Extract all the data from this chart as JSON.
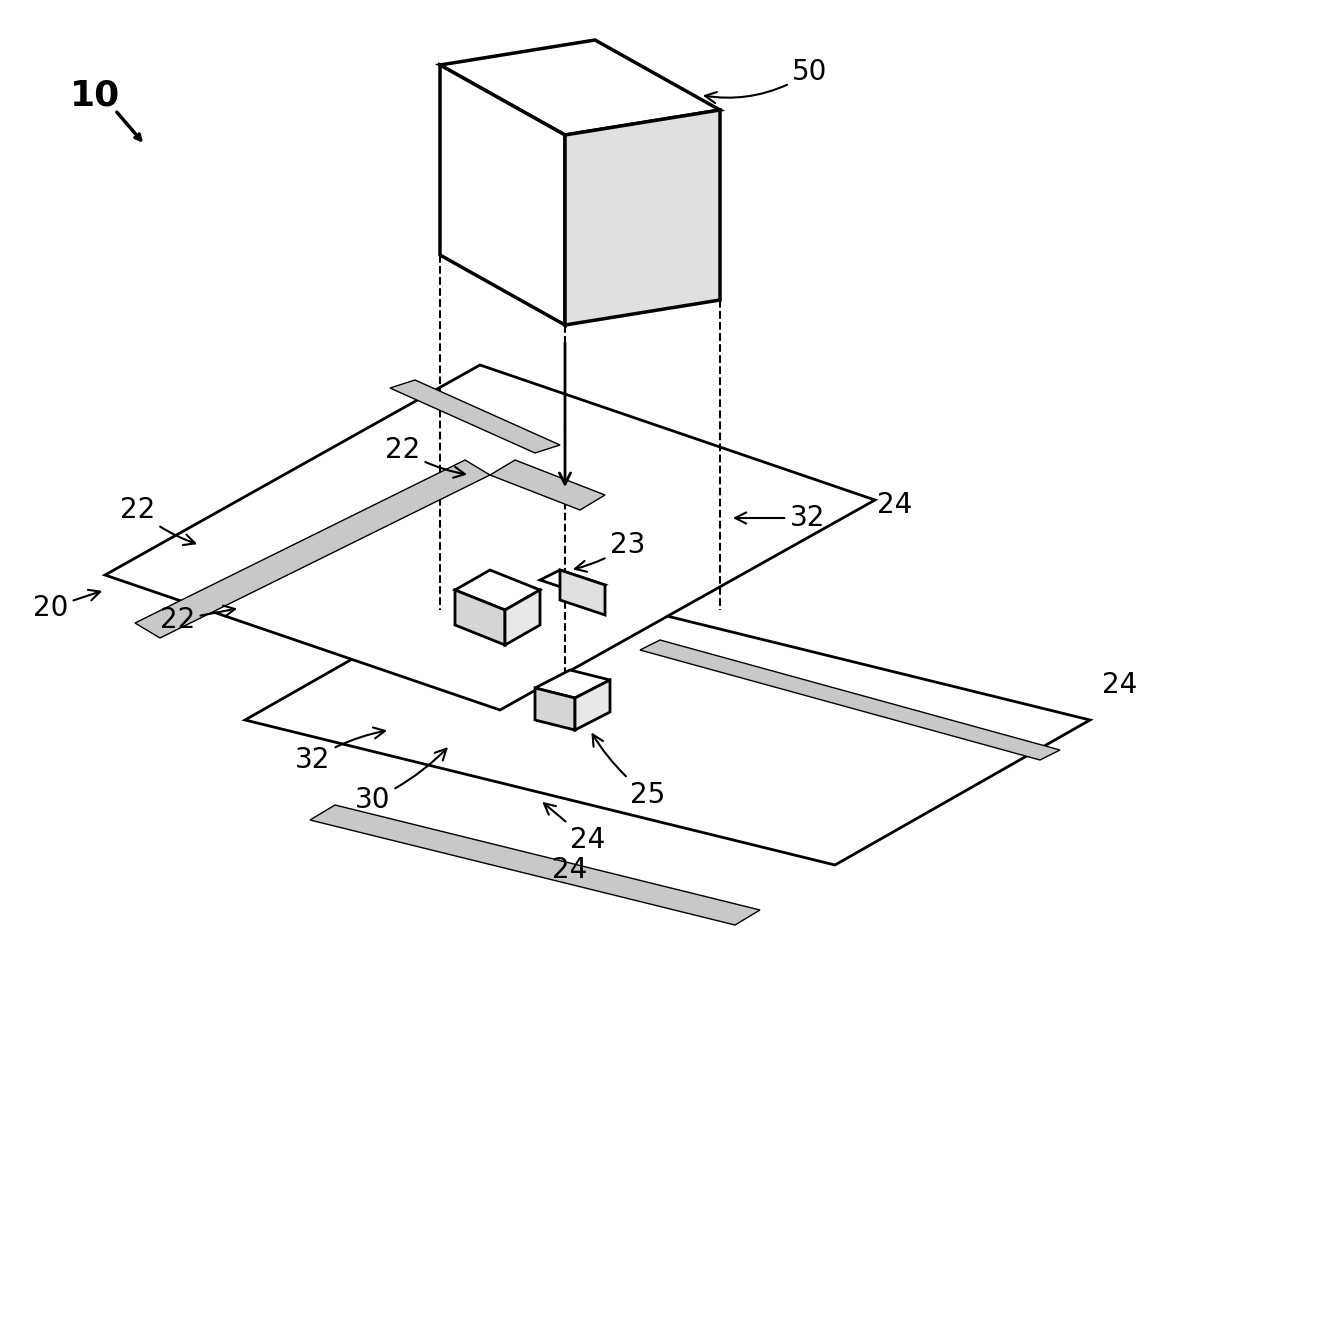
{
  "background_color": "#ffffff",
  "line_color": "#000000",
  "stipple_color": "#c8c8c8",
  "line_width": 2.0,
  "label_fontsize": 20,
  "bold_label_fontsize": 26
}
